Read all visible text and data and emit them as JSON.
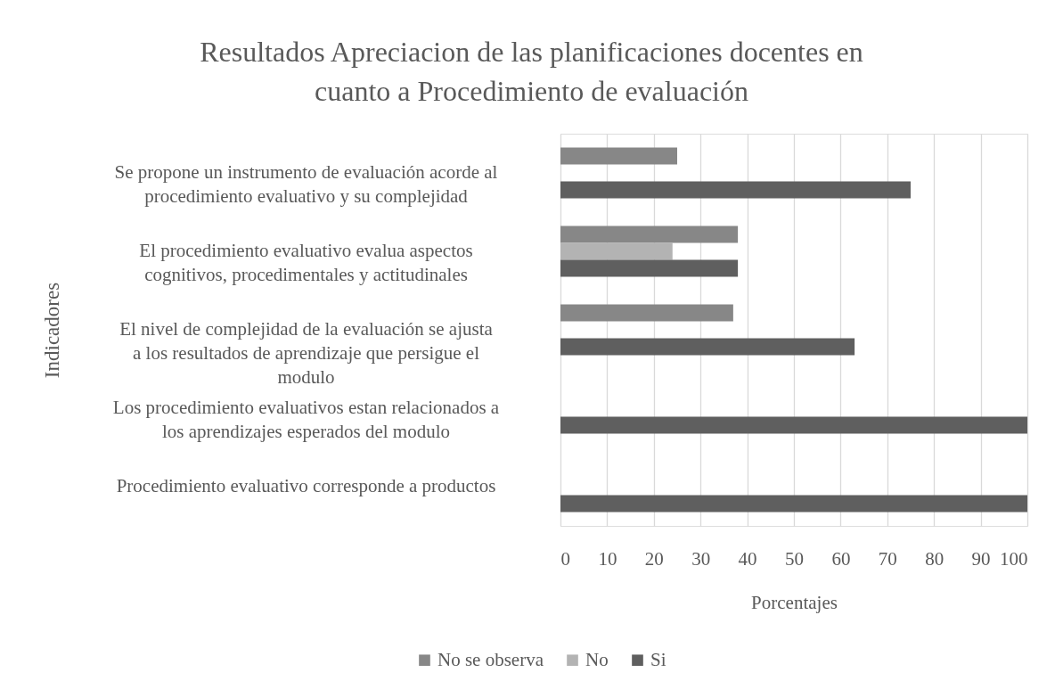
{
  "chart_data": {
    "type": "bar",
    "orientation": "horizontal",
    "title": "Resultados Apreciacion de las planificaciones docentes en cuanto a Procedimiento de evaluación",
    "xlabel": "Porcentajes",
    "ylabel": "Indicadores",
    "categories": [
      "Se propone un instrumento de evaluación acorde al procedimiento evaluativo y su complejidad",
      "El procedimiento evaluativo evalua aspectos cognitivos, procedimentales y actitudinales",
      "El nivel de complejidad de la evaluación se ajusta a los resultados de aprendizaje que persigue el modulo",
      "Los procedimiento evaluativos estan relacionados a los aprendizajes esperados del modulo",
      "Procedimiento evaluativo corresponde a productos"
    ],
    "series": [
      {
        "name": "No se observa",
        "color": "#878787",
        "values": [
          25,
          38,
          37,
          null,
          null
        ]
      },
      {
        "name": "No",
        "color": "#b3b3b3",
        "values": [
          null,
          24,
          null,
          null,
          null
        ]
      },
      {
        "name": "Si",
        "color": "#5f5f5f",
        "values": [
          75,
          38,
          63,
          100,
          100
        ]
      }
    ],
    "xlim": [
      0,
      100
    ],
    "xticks": [
      0,
      10,
      20,
      30,
      40,
      50,
      60,
      70,
      80,
      90,
      100
    ],
    "grid": "x",
    "legend": "bottom"
  }
}
